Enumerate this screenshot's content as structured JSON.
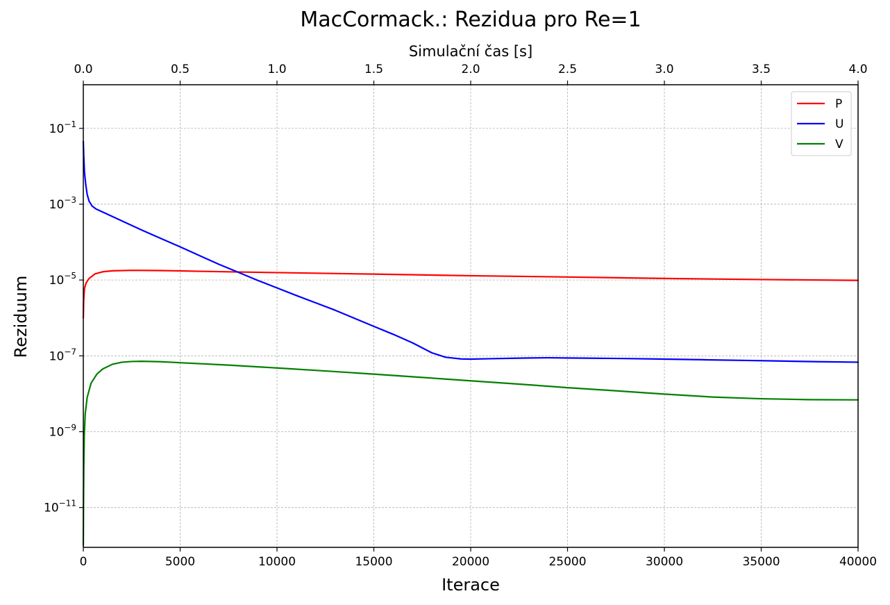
{
  "chart_data": {
    "type": "line",
    "title": "MacCormack.: Rezidua pro Re=1",
    "xlabel": "Iterace",
    "ylabel": "Reziduum",
    "top_xlabel": "Simulační čas [s]",
    "xlim": [
      0,
      40000
    ],
    "ylim_log10": [
      -12.05,
      0.15
    ],
    "yscale": "log",
    "grid": true,
    "legend_position": "top-right",
    "x_ticks": [
      0,
      5000,
      10000,
      15000,
      20000,
      25000,
      30000,
      35000,
      40000
    ],
    "x_tick_labels": [
      "0",
      "5000",
      "10000",
      "15000",
      "20000",
      "25000",
      "30000",
      "35000",
      "40000"
    ],
    "top_ticks": [
      0.0,
      0.5,
      1.0,
      1.5,
      2.0,
      2.5,
      3.0,
      3.5,
      4.0
    ],
    "top_tick_labels": [
      "0.0",
      "0.5",
      "1.0",
      "1.5",
      "2.0",
      "2.5",
      "3.0",
      "3.5",
      "4.0"
    ],
    "top_tick_factor": 10000,
    "y_ticks_exp": [
      -1,
      -3,
      -5,
      -7,
      -9,
      -11
    ],
    "series": [
      {
        "name": "P",
        "color": "#ff0000",
        "points": [
          [
            0,
            1e-06
          ],
          [
            20,
            3e-06
          ],
          [
            60,
            6e-06
          ],
          [
            150,
            8.5e-06
          ],
          [
            300,
            1.1e-05
          ],
          [
            600,
            1.45e-05
          ],
          [
            1000,
            1.65e-05
          ],
          [
            1500,
            1.75e-05
          ],
          [
            2500,
            1.8e-05
          ],
          [
            4000,
            1.78e-05
          ],
          [
            6000,
            1.7e-05
          ],
          [
            8000,
            1.63e-05
          ],
          [
            10000,
            1.57e-05
          ],
          [
            15000,
            1.43e-05
          ],
          [
            20000,
            1.3e-05
          ],
          [
            25000,
            1.2e-05
          ],
          [
            30000,
            1.1e-05
          ],
          [
            35000,
            1.03e-05
          ],
          [
            40000,
            9.8e-06
          ]
        ]
      },
      {
        "name": "U",
        "color": "#0000ff",
        "points": [
          [
            0,
            0.045
          ],
          [
            20,
            0.02
          ],
          [
            60,
            0.007
          ],
          [
            120,
            0.0035
          ],
          [
            200,
            0.0018
          ],
          [
            300,
            0.0012
          ],
          [
            450,
            0.0009
          ],
          [
            650,
            0.00075
          ],
          [
            1000,
            0.00062
          ],
          [
            2000,
            0.00036
          ],
          [
            3000,
            0.00021
          ],
          [
            4000,
            0.000125
          ],
          [
            5000,
            7.5e-05
          ],
          [
            6000,
            4.4e-05
          ],
          [
            7000,
            2.6e-05
          ],
          [
            8000,
            1.6e-05
          ],
          [
            9000,
            9.8e-06
          ],
          [
            10000,
            6.2e-06
          ],
          [
            11000,
            3.9e-06
          ],
          [
            12000,
            2.5e-06
          ],
          [
            13000,
            1.6e-06
          ],
          [
            14000,
            9.8e-07
          ],
          [
            15000,
            6e-07
          ],
          [
            16000,
            3.7e-07
          ],
          [
            17000,
            2.2e-07
          ],
          [
            18000,
            1.2e-07
          ],
          [
            18700,
            9.2e-08
          ],
          [
            19500,
            8.3e-08
          ],
          [
            20000,
            8.2e-08
          ],
          [
            21000,
            8.4e-08
          ],
          [
            22000,
            8.6e-08
          ],
          [
            23000,
            8.8e-08
          ],
          [
            24000,
            8.9e-08
          ],
          [
            25000,
            8.8e-08
          ],
          [
            26000,
            8.7e-08
          ],
          [
            28000,
            8.5e-08
          ],
          [
            30000,
            8.2e-08
          ],
          [
            32000,
            7.9e-08
          ],
          [
            34000,
            7.6e-08
          ],
          [
            36000,
            7.3e-08
          ],
          [
            38000,
            7e-08
          ],
          [
            40000,
            6.8e-08
          ]
        ]
      },
      {
        "name": "V",
        "color": "#008000",
        "points": [
          [
            0,
            1e-12
          ],
          [
            10,
            1e-11
          ],
          [
            25,
            1e-10
          ],
          [
            50,
            8e-10
          ],
          [
            100,
            3e-09
          ],
          [
            200,
            8e-09
          ],
          [
            400,
            1.9e-08
          ],
          [
            700,
            3.3e-08
          ],
          [
            1000,
            4.5e-08
          ],
          [
            1500,
            6e-08
          ],
          [
            2000,
            6.8e-08
          ],
          [
            2500,
            7.1e-08
          ],
          [
            3000,
            7.2e-08
          ],
          [
            4000,
            7e-08
          ],
          [
            5000,
            6.6e-08
          ],
          [
            7500,
            5.7e-08
          ],
          [
            10000,
            4.8e-08
          ],
          [
            12500,
            4e-08
          ],
          [
            15000,
            3.3e-08
          ],
          [
            17500,
            2.7e-08
          ],
          [
            20000,
            2.2e-08
          ],
          [
            22500,
            1.8e-08
          ],
          [
            25000,
            1.45e-08
          ],
          [
            27500,
            1.2e-08
          ],
          [
            30000,
            9.8e-09
          ],
          [
            32500,
            8.2e-09
          ],
          [
            35000,
            7.4e-09
          ],
          [
            37500,
            7e-09
          ],
          [
            40000,
            6.9e-09
          ]
        ]
      }
    ]
  }
}
